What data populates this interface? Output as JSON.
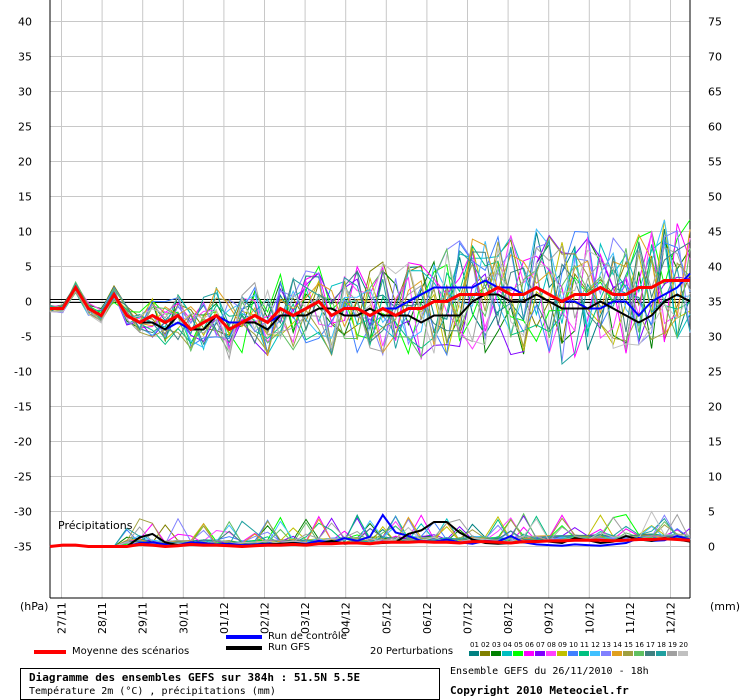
{
  "chart_data": {
    "type": "line",
    "x": [
      "27/11",
      "28/11",
      "29/11",
      "30/11",
      "01/12",
      "02/12",
      "03/12",
      "04/12",
      "05/12",
      "06/12",
      "07/12",
      "08/12",
      "09/12",
      "10/12",
      "11/12",
      "12/12"
    ],
    "y_left": {
      "label": "(hPa)",
      "ticks": [
        40,
        35,
        30,
        25,
        20,
        15,
        10,
        5,
        0,
        -5,
        -10,
        -15,
        -20,
        -25,
        -30,
        -35
      ]
    },
    "y_right": {
      "label": "(mm)",
      "ticks": [
        75,
        70,
        65,
        60,
        55,
        50,
        45,
        40,
        35,
        30,
        25,
        20,
        15,
        10,
        5,
        0
      ]
    },
    "temperature": {
      "mean": [
        -1,
        -1,
        2,
        -1,
        -2,
        1,
        -2,
        -3,
        -2,
        -3,
        -2,
        -4,
        -3,
        -2,
        -4,
        -3,
        -2,
        -3,
        -1,
        -2,
        -1,
        0,
        -2,
        -1,
        -1,
        -2,
        -1,
        -2,
        -1,
        -1,
        0,
        0,
        1,
        1,
        1,
        2,
        1,
        1,
        2,
        1,
        0,
        1,
        1,
        2,
        1,
        1,
        2,
        2,
        3,
        3,
        3
      ],
      "gfs": [
        -1,
        -1,
        2,
        -1,
        -2,
        1,
        -2,
        -3,
        -3,
        -4,
        -2,
        -4,
        -4,
        -2,
        -4,
        -3,
        -3,
        -4,
        -2,
        -2,
        -2,
        -1,
        -1,
        -2,
        -2,
        -1,
        -2,
        -2,
        -2,
        -3,
        -2,
        -2,
        -2,
        0,
        1,
        1,
        0,
        0,
        1,
        0,
        -1,
        -1,
        -1,
        0,
        -1,
        -2,
        -3,
        -2,
        0,
        1,
        0
      ],
      "control": [
        -1,
        -1,
        2,
        -1,
        -2,
        1,
        -2,
        -3,
        -3,
        -4,
        -3,
        -4,
        -3,
        -2,
        -3,
        -3,
        -2,
        -3,
        -2,
        -2,
        -1,
        0,
        -2,
        -1,
        -1,
        -2,
        -1,
        -1,
        0,
        1,
        2,
        2,
        2,
        2,
        3,
        2,
        2,
        1,
        2,
        1,
        0,
        0,
        -1,
        -1,
        0,
        0,
        -2,
        0,
        1,
        2,
        4
      ]
    },
    "precipitation": {
      "mean": [
        0,
        0.2,
        0.2,
        0,
        0,
        0,
        0,
        0.3,
        0.2,
        0,
        0.1,
        0.3,
        0.2,
        0.2,
        0.1,
        0,
        0.1,
        0.2,
        0.2,
        0.3,
        0.2,
        0.4,
        0.4,
        0.5,
        0.5,
        0.4,
        0.6,
        0.6,
        0.6,
        0.7,
        0.6,
        0.6,
        0.5,
        0.7,
        0.7,
        0.6,
        0.5,
        0.7,
        0.7,
        0.8,
        0.8,
        0.9,
        0.9,
        0.9,
        0.8,
        0.9,
        1.0,
        1.0,
        1.1,
        1.0,
        0.9
      ],
      "gfs": [
        0,
        0.2,
        0.2,
        0,
        0,
        0,
        0,
        1.3,
        1.8,
        0.6,
        0.2,
        0.3,
        0.2,
        0.2,
        0.1,
        0,
        0.2,
        0.3,
        0.4,
        0.5,
        0.3,
        0.4,
        0.8,
        0.4,
        0.5,
        0.4,
        0.5,
        0.6,
        1.8,
        2.3,
        3.5,
        3.5,
        2.0,
        1.0,
        0.5,
        0.4,
        0.5,
        0.6,
        0.8,
        0.7,
        0.5,
        1.2,
        0.9,
        0.5,
        0.7,
        1.5,
        1.0,
        0.8,
        1.2,
        1.0,
        0.7
      ],
      "control": [
        0,
        0.2,
        0.2,
        0,
        0,
        0,
        0,
        0.5,
        0.6,
        0.3,
        0.2,
        0.6,
        0.5,
        0.3,
        0.4,
        0.2,
        0.3,
        0.4,
        0.3,
        0.5,
        0.4,
        0.8,
        0.6,
        1.2,
        0.8,
        1.4,
        4.5,
        2.0,
        1.5,
        0.8,
        0.7,
        1.0,
        0.6,
        0.4,
        0.8,
        0.7,
        1.5,
        0.6,
        0.3,
        0.2,
        0.1,
        0.3,
        0.2,
        0.1,
        0.3,
        0.5,
        1.2,
        0.8,
        0.9,
        1.5,
        1.0
      ]
    },
    "annotation": "Précipitations",
    "grid": true
  },
  "legend": {
    "mean": "Moyenne des scénarios",
    "control": "Run de contrôle",
    "gfs": "Run GFS",
    "perturbations": "20 Perturbations",
    "perturbation_numbers": [
      "01",
      "02",
      "03",
      "04",
      "05",
      "06",
      "07",
      "08",
      "09",
      "10",
      "11",
      "12",
      "13",
      "14",
      "15",
      "16",
      "17",
      "18",
      "19",
      "20"
    ],
    "colors": {
      "mean": "#ff0000",
      "control": "#0000ff",
      "gfs": "#000000"
    },
    "perturbation_colors": [
      "#008080",
      "#808000",
      "#008000",
      "#00c0c0",
      "#00ff00",
      "#ff00ff",
      "#8000ff",
      "#ff40ff",
      "#c0c000",
      "#4080ff",
      "#00c080",
      "#40c0ff",
      "#8080ff",
      "#e0a020",
      "#a0a040",
      "#60c060",
      "#408080",
      "#20a0a0",
      "#a0a0a0",
      "#c0c0c0"
    ]
  },
  "footer": {
    "title": "Diagramme des ensembles GEFS sur 384h : 51.5N 5.5E",
    "subtitle": "Température 2m (°C) , précipitations (mm)",
    "ensemble": "Ensemble GEFS du 26/11/2010 - 18h",
    "copyright": "Copyright 2010 Meteociel.fr"
  }
}
